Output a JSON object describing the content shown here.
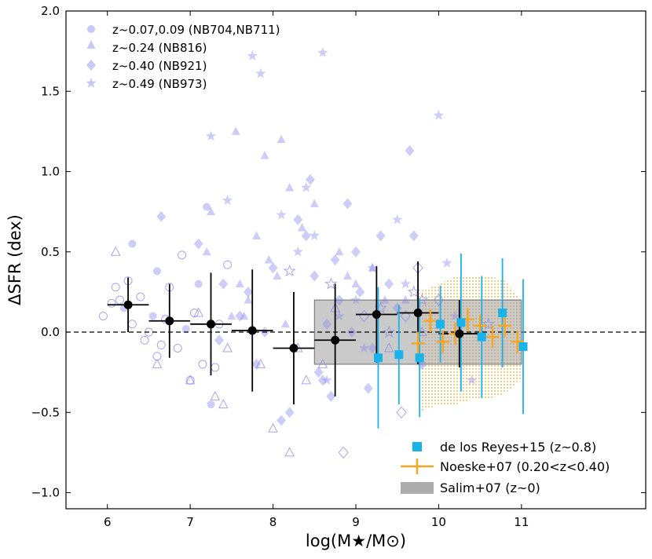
{
  "chart_data": {
    "type": "scatter",
    "title": "",
    "xlabel": "log(M★/M⊙)",
    "ylabel": "ΔSFR (dex)",
    "xlim": [
      5.5,
      12.5
    ],
    "ylim": [
      -1.1,
      2.0
    ],
    "xticks": [
      6,
      7,
      8,
      9,
      10,
      11
    ],
    "yticks": [
      -1.0,
      -0.5,
      0.0,
      0.5,
      1.0,
      1.5,
      2.0
    ],
    "ytick_labels": [
      "−1.0",
      "−0.5",
      "0.0",
      "0.5",
      "1.0",
      "1.5",
      "2.0"
    ],
    "reference_line": {
      "y": 0.0,
      "style": "dashed",
      "color": "#000000"
    },
    "colors": {
      "scatter": "#8888ee",
      "median": "#000000",
      "delosreyes": "#1ab2ea",
      "noeske": "#f5a623",
      "salim": "#9e9e9e"
    },
    "scatter_legend": [
      {
        "marker": "circle",
        "label": "z~0.07,0.09 (NB704,NB711)"
      },
      {
        "marker": "triangle",
        "label": "z~0.24 (NB816)"
      },
      {
        "marker": "diamond",
        "label": "z~0.40 (NB921)"
      },
      {
        "marker": "star",
        "label": "z~0.49 (NB973)"
      }
    ],
    "series": [
      {
        "name": "z~0.07,0.09 (NB704,NB711)",
        "marker": "circle",
        "x": [
          5.95,
          6.1,
          6.2,
          6.3,
          6.4,
          6.5,
          6.6,
          6.7,
          6.85,
          7.0,
          7.1,
          7.2,
          7.3,
          7.05,
          6.9,
          6.6,
          6.3,
          6.15,
          6.45,
          7.25,
          7.45,
          6.75,
          6.55,
          7.15,
          6.05,
          6.95,
          7.35,
          6.25,
          6.65
        ],
        "y": [
          0.1,
          0.28,
          0.15,
          0.05,
          0.22,
          0.0,
          0.38,
          0.08,
          -0.1,
          -0.3,
          0.3,
          0.78,
          -0.22,
          0.12,
          0.48,
          -0.15,
          0.55,
          0.2,
          -0.05,
          -0.45,
          0.42,
          0.28,
          0.1,
          -0.2,
          0.18,
          0.02,
          0.05,
          0.32,
          -0.08
        ],
        "filled": [
          0,
          0,
          1,
          0,
          0,
          0,
          1,
          0,
          0,
          0,
          1,
          1,
          0,
          0,
          0,
          0,
          1,
          0,
          0,
          1,
          0,
          0,
          1,
          0,
          0,
          1,
          0,
          0,
          0
        ]
      },
      {
        "name": "z~0.24 (NB816)",
        "marker": "triangle",
        "x": [
          6.6,
          7.0,
          7.3,
          7.5,
          7.6,
          7.8,
          7.9,
          8.0,
          8.1,
          8.2,
          8.3,
          8.4,
          7.2,
          7.4,
          7.7,
          8.5,
          8.6,
          8.8,
          9.0,
          9.2,
          9.4,
          9.6,
          9.8,
          8.9,
          8.2,
          7.55,
          7.25,
          6.1,
          9.35,
          7.65,
          7.85,
          8.05,
          8.35,
          8.75,
          7.1,
          7.45,
          8.15,
          7.95
        ],
        "y": [
          -0.2,
          -0.3,
          -0.4,
          0.1,
          0.3,
          0.6,
          1.1,
          -0.6,
          1.2,
          0.9,
          -0.1,
          -0.3,
          0.5,
          -0.45,
          0.2,
          0.8,
          -0.2,
          0.5,
          0.3,
          0.4,
          -0.1,
          0.2,
          0.0,
          0.35,
          -0.75,
          1.25,
          0.75,
          0.5,
          0.2,
          0.1,
          -0.2,
          0.35,
          0.65,
          0.15,
          0.12,
          -0.1,
          0.05,
          0.45
        ],
        "filled": [
          0,
          0,
          0,
          1,
          1,
          1,
          1,
          0,
          1,
          1,
          0,
          0,
          1,
          0,
          1,
          1,
          0,
          1,
          1,
          1,
          0,
          1,
          0,
          1,
          0,
          1,
          1,
          0,
          1,
          1,
          0,
          1,
          1,
          0,
          0,
          0,
          1,
          1
        ]
      },
      {
        "name": "z~0.40 (NB921)",
        "marker": "diamond",
        "x": [
          6.65,
          7.1,
          7.4,
          7.6,
          7.8,
          8.0,
          8.2,
          8.4,
          8.6,
          8.8,
          9.0,
          9.2,
          9.4,
          9.6,
          9.8,
          10.0,
          8.3,
          8.5,
          8.7,
          8.9,
          9.1,
          9.3,
          9.5,
          9.65,
          9.75,
          8.1,
          7.9,
          7.7,
          8.45,
          8.65,
          9.15,
          8.85,
          8.25,
          8.75,
          9.7,
          8.55,
          9.55,
          9.05,
          7.35,
          8.95
        ],
        "y": [
          0.72,
          0.55,
          0.3,
          0.1,
          -0.2,
          0.4,
          -0.5,
          0.6,
          -0.3,
          0.2,
          0.5,
          -0.1,
          0.3,
          0.1,
          -0.2,
          0.2,
          0.7,
          0.35,
          -0.4,
          0.8,
          0.1,
          0.6,
          0.15,
          1.13,
          0.4,
          -0.55,
          0.0,
          0.25,
          0.95,
          0.05,
          -0.35,
          -0.75,
          -0.1,
          0.45,
          0.6,
          -0.25,
          -0.5,
          0.25,
          -0.05,
          0.0
        ],
        "filled": [
          1,
          1,
          1,
          1,
          1,
          1,
          1,
          1,
          1,
          1,
          1,
          1,
          1,
          0,
          1,
          0,
          1,
          1,
          1,
          1,
          0,
          1,
          1,
          1,
          0,
          1,
          1,
          1,
          1,
          1,
          1,
          0,
          1,
          1,
          1,
          1,
          0,
          1,
          1,
          1
        ]
      },
      {
        "name": "z~0.49 (NB973)",
        "marker": "star",
        "x": [
          7.25,
          7.45,
          7.75,
          7.85,
          8.1,
          8.2,
          8.4,
          8.5,
          8.6,
          8.7,
          8.8,
          9.0,
          9.2,
          9.4,
          9.6,
          9.8,
          10.0,
          10.2,
          10.4,
          10.5,
          10.6,
          8.65,
          9.5,
          9.7,
          9.1,
          8.3,
          10.1,
          9.3
        ],
        "y": [
          1.22,
          0.82,
          1.72,
          1.61,
          0.73,
          0.38,
          0.9,
          0.6,
          1.74,
          0.3,
          0.1,
          0.2,
          0.4,
          0.0,
          0.3,
          0.2,
          1.35,
          0.1,
          -0.3,
          0.0,
          0.05,
          -0.3,
          0.7,
          0.25,
          -0.1,
          0.5,
          0.43,
          0.15
        ],
        "filled": [
          1,
          1,
          1,
          1,
          1,
          0,
          1,
          1,
          1,
          0,
          1,
          1,
          1,
          0,
          1,
          0,
          1,
          1,
          1,
          1,
          0,
          1,
          1,
          0,
          1,
          1,
          1,
          0
        ]
      },
      {
        "name": "median",
        "x": [
          6.25,
          6.75,
          7.25,
          7.75,
          8.25,
          8.75,
          9.25,
          9.75,
          10.25
        ],
        "y": [
          0.17,
          0.07,
          0.05,
          0.01,
          -0.1,
          -0.05,
          0.11,
          0.12,
          -0.01
        ],
        "xerr": [
          0.25,
          0.25,
          0.25,
          0.25,
          0.25,
          0.25,
          0.25,
          0.25,
          0.25
        ],
        "yerr": [
          0.17,
          0.23,
          0.32,
          0.38,
          0.35,
          0.35,
          0.3,
          0.32,
          0.21
        ]
      },
      {
        "name": "de los Reyes+15 (z~0.8)",
        "x": [
          9.27,
          9.52,
          9.77,
          10.02,
          10.27,
          10.52,
          10.77,
          11.02
        ],
        "y": [
          -0.16,
          -0.14,
          -0.16,
          0.05,
          0.06,
          -0.03,
          0.12,
          -0.09
        ],
        "yerr": [
          0.44,
          0.31,
          0.37,
          0.24,
          0.43,
          0.38,
          0.34,
          0.42
        ]
      },
      {
        "name": "Noeske+07 (0.20<z<0.40)",
        "x": [
          9.75,
          9.9,
          10.05,
          10.2,
          10.35,
          10.5,
          10.65,
          10.8,
          10.95
        ],
        "y": [
          -0.07,
          0.07,
          -0.06,
          -0.01,
          0.08,
          0.04,
          -0.03,
          0.04,
          -0.06
        ],
        "xerr": [
          0.08,
          0.08,
          0.08,
          0.08,
          0.08,
          0.08,
          0.08,
          0.08,
          0.08
        ],
        "yerr": [
          0.07,
          0.07,
          0.07,
          0.07,
          0.07,
          0.07,
          0.07,
          0.07,
          0.07
        ],
        "band_x": [
          9.75,
          10.0,
          10.2,
          10.4,
          10.6,
          10.8,
          11.0
        ],
        "band_lo": [
          -0.5,
          -0.45,
          -0.45,
          -0.42,
          -0.42,
          -0.38,
          -0.3
        ],
        "band_hi": [
          0.25,
          0.3,
          0.35,
          0.35,
          0.35,
          0.32,
          0.2
        ]
      },
      {
        "name": "Salim+07 (z~0)",
        "x0": 8.5,
        "x1": 11.0,
        "y0": -0.2,
        "y1": 0.2
      }
    ],
    "legend_lower": [
      {
        "key": "delosreyes",
        "label": "de los Reyes+15 (z~0.8)"
      },
      {
        "key": "noeske",
        "label": "Noeske+07 (0.20<z<0.40)"
      },
      {
        "key": "salim",
        "label": "Salim+07 (z~0)"
      }
    ]
  }
}
